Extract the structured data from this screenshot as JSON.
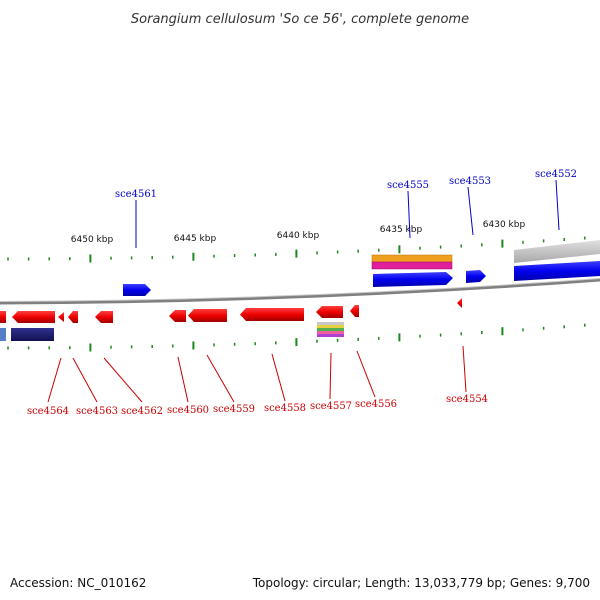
{
  "title": "Sorangium cellulosum 'So ce 56', complete genome",
  "scale_labels": [
    "6450 kbp",
    "6445 kbp",
    "6440 kbp",
    "6435 kbp",
    "6430 kbp"
  ],
  "genes_top": [
    "sce4561",
    "sce4555",
    "sce4553",
    "sce4552"
  ],
  "genes_bottom": [
    "sce4564",
    "sce4563",
    "sce4562",
    "sce4560",
    "sce4559",
    "sce4558",
    "sce4557",
    "sce4556",
    "sce4554"
  ],
  "footer": {
    "accession": "Accession: NC_010162",
    "summary": "Topology: circular; Length: 13,033,779 bp; Genes: 9,700"
  },
  "colors": {
    "forward": "#0000ee",
    "reverse": "#ee0000",
    "label_forward": "#0000cc",
    "label_reverse": "#cc0000",
    "ticks": "#1a8a1a",
    "backbone": "#808080"
  }
}
